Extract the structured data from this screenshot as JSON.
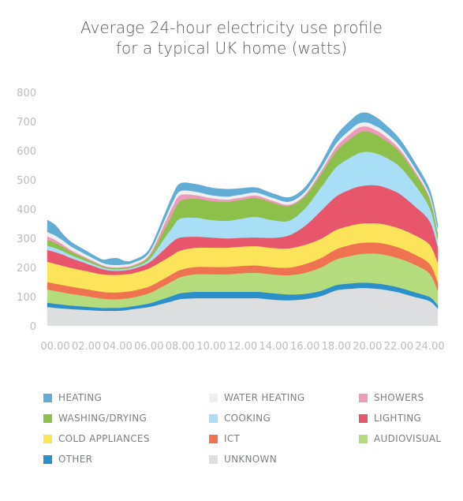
{
  "title_line1": "Average 24-hour electricity use profile",
  "title_line2": "for a typical UK home (watts)",
  "chart_data": {
    "type": "area",
    "stacked": true,
    "x": [
      -0.5,
      0,
      0.5,
      1,
      2,
      3,
      3.5,
      4,
      4.5,
      5,
      6,
      7,
      7.5,
      8,
      9,
      10,
      11,
      11.5,
      12,
      12.5,
      13,
      14,
      15,
      16,
      17,
      18,
      19,
      19.5,
      20,
      20.5,
      21,
      22,
      23,
      24,
      24.5
    ],
    "x_tick_labels": [
      "00.00",
      "02.00",
      "04.00",
      "06.00",
      "08.00",
      "10.00",
      "12.00",
      "14.00",
      "16.00",
      "18.00",
      "20.00",
      "22.00",
      "24.00"
    ],
    "x_tick_values": [
      0,
      2,
      4,
      6,
      8,
      10,
      12,
      14,
      16,
      18,
      20,
      22,
      24
    ],
    "ylim": [
      0,
      800
    ],
    "y_ticks": [
      0,
      100,
      200,
      300,
      400,
      500,
      600,
      700,
      800
    ],
    "grid": false,
    "legend_position": "bottom",
    "series": [
      {
        "name": "UNKNOWN",
        "color": "#dcdedf",
        "values": [
          65,
          62,
          60,
          58,
          55,
          52,
          52,
          52,
          54,
          58,
          65,
          78,
          85,
          92,
          95,
          95,
          95,
          95,
          95,
          95,
          95,
          90,
          88,
          92,
          102,
          122,
          128,
          130,
          130,
          128,
          125,
          115,
          100,
          85,
          60
        ]
      },
      {
        "name": "OTHER",
        "color": "#2b8fc9",
        "values": [
          15,
          14,
          13,
          12,
          11,
          10,
          10,
          10,
          10,
          10,
          12,
          16,
          18,
          20,
          22,
          22,
          22,
          22,
          22,
          22,
          22,
          22,
          20,
          18,
          18,
          18,
          18,
          18,
          18,
          18,
          18,
          17,
          16,
          14,
          12
        ]
      },
      {
        "name": "AUDIOVISUAL",
        "color": "#b5dc7c",
        "values": [
          45,
          44,
          42,
          40,
          36,
          32,
          30,
          30,
          30,
          30,
          35,
          45,
          50,
          55,
          60,
          60,
          60,
          62,
          64,
          65,
          65,
          64,
          66,
          72,
          80,
          88,
          95,
          98,
          100,
          102,
          102,
          100,
          95,
          80,
          50
        ]
      },
      {
        "name": "ICT",
        "color": "#ef7351",
        "values": [
          25,
          25,
          25,
          25,
          24,
          23,
          23,
          23,
          23,
          23,
          23,
          24,
          25,
          25,
          25,
          25,
          25,
          25,
          25,
          25,
          25,
          25,
          26,
          30,
          32,
          35,
          38,
          38,
          38,
          38,
          38,
          37,
          35,
          33,
          30
        ]
      },
      {
        "name": "COLD APPLIANCES",
        "color": "#fbe45a",
        "values": [
          70,
          68,
          66,
          64,
          62,
          60,
          60,
          60,
          60,
          60,
          62,
          64,
          65,
          66,
          66,
          66,
          66,
          66,
          66,
          66,
          66,
          66,
          66,
          66,
          66,
          66,
          66,
          66,
          66,
          66,
          66,
          66,
          66,
          66,
          66
        ]
      },
      {
        "name": "LIGHTING",
        "color": "#e8566b",
        "values": [
          40,
          40,
          38,
          34,
          26,
          18,
          15,
          14,
          14,
          15,
          20,
          36,
          45,
          45,
          38,
          35,
          32,
          31,
          30,
          30,
          30,
          35,
          45,
          65,
          95,
          115,
          125,
          128,
          130,
          130,
          128,
          120,
          100,
          80,
          55
        ]
      },
      {
        "name": "COOKING",
        "color": "#a8def6",
        "values": [
          15,
          14,
          12,
          10,
          8,
          6,
          5,
          5,
          5,
          5,
          10,
          38,
          50,
          65,
          65,
          60,
          60,
          63,
          66,
          70,
          70,
          60,
          50,
          60,
          80,
          100,
          110,
          115,
          115,
          110,
          105,
          95,
          75,
          45,
          25
        ]
      },
      {
        "name": "WASHING/DRYING",
        "color": "#8dc04a",
        "values": [
          20,
          18,
          15,
          12,
          8,
          5,
          4,
          4,
          4,
          5,
          10,
          30,
          45,
          60,
          65,
          65,
          65,
          65,
          65,
          65,
          65,
          60,
          50,
          42,
          45,
          55,
          65,
          70,
          70,
          65,
          60,
          50,
          40,
          30,
          20
        ]
      },
      {
        "name": "SHOWERS",
        "color": "#ee9ab9",
        "values": [
          12,
          10,
          8,
          6,
          4,
          3,
          3,
          3,
          3,
          3,
          5,
          20,
          25,
          20,
          12,
          10,
          8,
          8,
          8,
          8,
          8,
          6,
          5,
          5,
          10,
          15,
          18,
          18,
          16,
          15,
          14,
          10,
          8,
          6,
          5
        ]
      },
      {
        "name": "WATER HEATING",
        "color": "#eeeff0",
        "values": [
          15,
          15,
          14,
          12,
          10,
          8,
          8,
          8,
          8,
          8,
          8,
          12,
          14,
          14,
          12,
          10,
          10,
          10,
          10,
          10,
          10,
          10,
          10,
          10,
          10,
          12,
          14,
          14,
          14,
          14,
          14,
          12,
          10,
          10,
          10
        ]
      },
      {
        "name": "HEATING",
        "color": "#62add6",
        "values": [
          40,
          35,
          20,
          15,
          12,
          10,
          20,
          22,
          10,
          8,
          10,
          18,
          22,
          25,
          25,
          25,
          25,
          22,
          20,
          18,
          16,
          14,
          14,
          14,
          16,
          25,
          30,
          32,
          32,
          30,
          26,
          22,
          18,
          16,
          15
        ]
      }
    ]
  },
  "legend": [
    [
      "HEATING",
      "WATER HEATING",
      "SHOWERS"
    ],
    [
      "WASHING/DRYING",
      "COOKING",
      "LIGHTING"
    ],
    [
      "COLD APPLIANCES",
      "ICT",
      "AUDIOVISUAL"
    ],
    [
      "OTHER",
      "UNKNOWN"
    ]
  ]
}
